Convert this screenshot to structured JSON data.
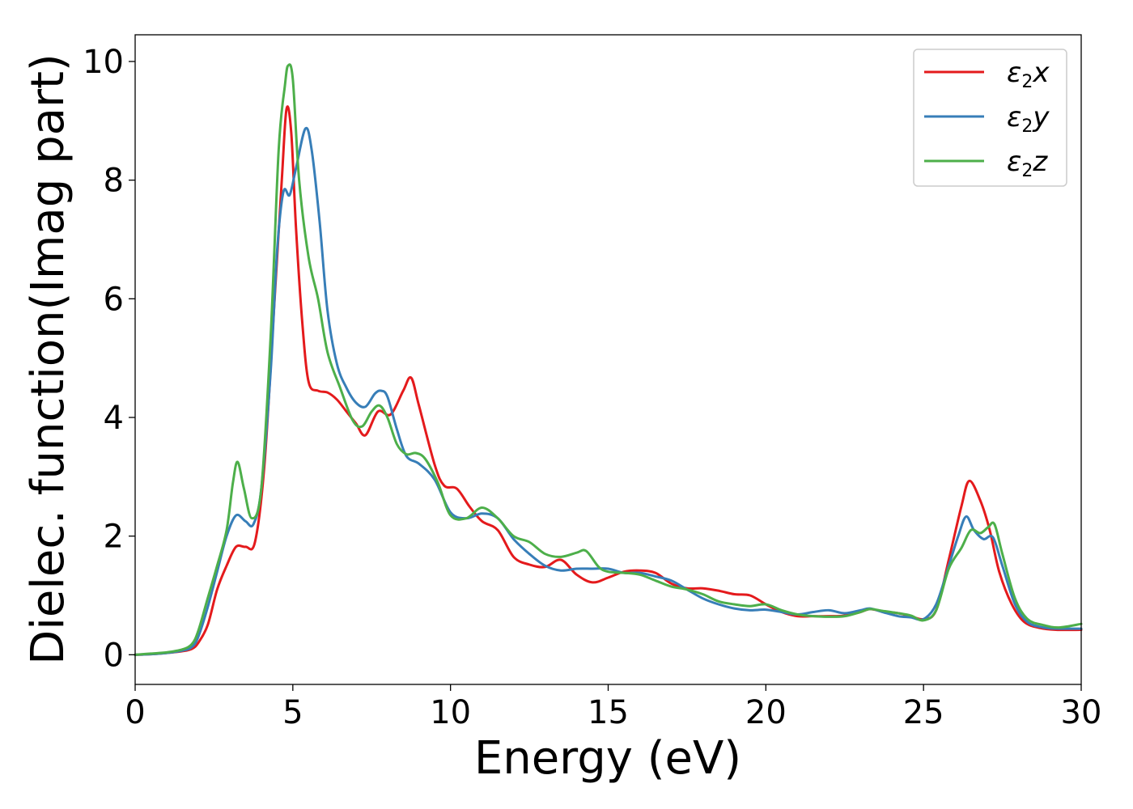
{
  "chart_data": {
    "type": "line",
    "xlabel": "Energy (eV)",
    "ylabel": "Dielec. function(Imag part)",
    "xlim": [
      0,
      30
    ],
    "ylim": [
      -0.5,
      10.45
    ],
    "xticks": [
      0,
      5,
      10,
      15,
      20,
      25,
      30
    ],
    "xtick_labels": [
      "0",
      "5",
      "10",
      "15",
      "20",
      "25",
      "30"
    ],
    "yticks": [
      0,
      2,
      4,
      6,
      8,
      10
    ],
    "ytick_labels": [
      "0",
      "2",
      "4",
      "6",
      "8",
      "10"
    ],
    "grid": false,
    "legend_position": "top-right",
    "series": [
      {
        "name": "ε2x",
        "legend_base": "ε",
        "legend_sub": "2",
        "legend_var": "x",
        "color": "#e41a1c",
        "points": [
          [
            0,
            0
          ],
          [
            0.5,
            0.01
          ],
          [
            1,
            0.03
          ],
          [
            1.5,
            0.06
          ],
          [
            1.8,
            0.1
          ],
          [
            2,
            0.2
          ],
          [
            2.3,
            0.5
          ],
          [
            2.6,
            1.1
          ],
          [
            2.9,
            1.5
          ],
          [
            3.2,
            1.82
          ],
          [
            3.5,
            1.82
          ],
          [
            3.8,
            1.9
          ],
          [
            4.1,
            3.2
          ],
          [
            4.4,
            5.8
          ],
          [
            4.65,
            8
          ],
          [
            4.8,
            9.2
          ],
          [
            4.95,
            8.8
          ],
          [
            5.1,
            7.2
          ],
          [
            5.3,
            5.6
          ],
          [
            5.5,
            4.6
          ],
          [
            5.8,
            4.45
          ],
          [
            6.1,
            4.42
          ],
          [
            6.4,
            4.3
          ],
          [
            6.7,
            4.1
          ],
          [
            7,
            3.9
          ],
          [
            7.3,
            3.7
          ],
          [
            7.7,
            4.1
          ],
          [
            8.1,
            4.05
          ],
          [
            8.5,
            4.45
          ],
          [
            8.75,
            4.67
          ],
          [
            9,
            4.2
          ],
          [
            9.5,
            3.2
          ],
          [
            9.8,
            2.85
          ],
          [
            10.2,
            2.8
          ],
          [
            10.6,
            2.5
          ],
          [
            11,
            2.25
          ],
          [
            11.5,
            2.1
          ],
          [
            12,
            1.65
          ],
          [
            12.5,
            1.52
          ],
          [
            13,
            1.48
          ],
          [
            13.5,
            1.6
          ],
          [
            14,
            1.35
          ],
          [
            14.5,
            1.22
          ],
          [
            15,
            1.3
          ],
          [
            15.5,
            1.4
          ],
          [
            16,
            1.42
          ],
          [
            16.5,
            1.38
          ],
          [
            17,
            1.2
          ],
          [
            17.5,
            1.12
          ],
          [
            18,
            1.12
          ],
          [
            18.5,
            1.08
          ],
          [
            19,
            1.02
          ],
          [
            19.5,
            1.0
          ],
          [
            20,
            0.85
          ],
          [
            20.5,
            0.72
          ],
          [
            21,
            0.65
          ],
          [
            21.5,
            0.65
          ],
          [
            22,
            0.65
          ],
          [
            22.5,
            0.66
          ],
          [
            23,
            0.72
          ],
          [
            23.3,
            0.77
          ],
          [
            23.7,
            0.73
          ],
          [
            24.2,
            0.7
          ],
          [
            24.6,
            0.65
          ],
          [
            25,
            0.6
          ],
          [
            25.4,
            0.75
          ],
          [
            25.8,
            1.6
          ],
          [
            26.2,
            2.5
          ],
          [
            26.45,
            2.93
          ],
          [
            26.8,
            2.6
          ],
          [
            27.1,
            2.1
          ],
          [
            27.4,
            1.4
          ],
          [
            27.8,
            0.85
          ],
          [
            28.2,
            0.55
          ],
          [
            28.7,
            0.45
          ],
          [
            29.2,
            0.42
          ],
          [
            30,
            0.42
          ]
        ]
      },
      {
        "name": "ε2y",
        "legend_base": "ε",
        "legend_sub": "2",
        "legend_var": "y",
        "color": "#377eb8",
        "points": [
          [
            0,
            0
          ],
          [
            0.5,
            0.01
          ],
          [
            1,
            0.03
          ],
          [
            1.5,
            0.07
          ],
          [
            1.8,
            0.13
          ],
          [
            2,
            0.3
          ],
          [
            2.3,
            0.8
          ],
          [
            2.6,
            1.4
          ],
          [
            2.9,
            2.0
          ],
          [
            3.2,
            2.35
          ],
          [
            3.5,
            2.25
          ],
          [
            3.75,
            2.2
          ],
          [
            4.0,
            2.8
          ],
          [
            4.3,
            4.8
          ],
          [
            4.5,
            6.8
          ],
          [
            4.7,
            7.8
          ],
          [
            4.9,
            7.75
          ],
          [
            5.1,
            8.2
          ],
          [
            5.4,
            8.87
          ],
          [
            5.6,
            8.5
          ],
          [
            5.85,
            7.3
          ],
          [
            6.1,
            5.8
          ],
          [
            6.4,
            4.9
          ],
          [
            6.7,
            4.5
          ],
          [
            7.0,
            4.25
          ],
          [
            7.3,
            4.18
          ],
          [
            7.6,
            4.4
          ],
          [
            7.8,
            4.45
          ],
          [
            8.0,
            4.35
          ],
          [
            8.3,
            3.8
          ],
          [
            8.6,
            3.35
          ],
          [
            9.0,
            3.22
          ],
          [
            9.5,
            2.95
          ],
          [
            10.0,
            2.4
          ],
          [
            10.5,
            2.3
          ],
          [
            11.0,
            2.38
          ],
          [
            11.5,
            2.3
          ],
          [
            12.0,
            1.95
          ],
          [
            12.5,
            1.7
          ],
          [
            13.0,
            1.5
          ],
          [
            13.5,
            1.42
          ],
          [
            14.0,
            1.45
          ],
          [
            14.5,
            1.45
          ],
          [
            15.0,
            1.45
          ],
          [
            15.5,
            1.38
          ],
          [
            16.0,
            1.38
          ],
          [
            16.5,
            1.32
          ],
          [
            17.0,
            1.25
          ],
          [
            17.5,
            1.1
          ],
          [
            18.0,
            0.95
          ],
          [
            18.5,
            0.85
          ],
          [
            19.0,
            0.78
          ],
          [
            19.5,
            0.75
          ],
          [
            20.0,
            0.76
          ],
          [
            20.5,
            0.72
          ],
          [
            21.0,
            0.68
          ],
          [
            21.5,
            0.72
          ],
          [
            22.0,
            0.75
          ],
          [
            22.5,
            0.7
          ],
          [
            23.0,
            0.75
          ],
          [
            23.3,
            0.78
          ],
          [
            23.7,
            0.72
          ],
          [
            24.2,
            0.65
          ],
          [
            24.6,
            0.63
          ],
          [
            25.0,
            0.6
          ],
          [
            25.4,
            0.85
          ],
          [
            25.8,
            1.5
          ],
          [
            26.1,
            2.0
          ],
          [
            26.35,
            2.33
          ],
          [
            26.6,
            2.1
          ],
          [
            26.9,
            1.95
          ],
          [
            27.2,
            1.98
          ],
          [
            27.5,
            1.5
          ],
          [
            27.9,
            0.85
          ],
          [
            28.3,
            0.55
          ],
          [
            28.8,
            0.46
          ],
          [
            29.3,
            0.44
          ],
          [
            30,
            0.44
          ]
        ]
      },
      {
        "name": "ε2z",
        "legend_base": "ε",
        "legend_sub": "2",
        "legend_var": "z",
        "color": "#4daf4a",
        "points": [
          [
            0,
            0
          ],
          [
            0.5,
            0.02
          ],
          [
            1,
            0.04
          ],
          [
            1.5,
            0.09
          ],
          [
            1.8,
            0.18
          ],
          [
            2,
            0.4
          ],
          [
            2.3,
            0.95
          ],
          [
            2.6,
            1.5
          ],
          [
            2.9,
            2.1
          ],
          [
            3.1,
            2.9
          ],
          [
            3.25,
            3.25
          ],
          [
            3.45,
            2.8
          ],
          [
            3.7,
            2.3
          ],
          [
            4.0,
            2.8
          ],
          [
            4.3,
            5.4
          ],
          [
            4.55,
            8.5
          ],
          [
            4.75,
            9.6
          ],
          [
            4.85,
            9.93
          ],
          [
            5.0,
            9.7
          ],
          [
            5.2,
            8.0
          ],
          [
            5.5,
            6.7
          ],
          [
            5.8,
            6.0
          ],
          [
            6.1,
            5.1
          ],
          [
            6.5,
            4.5
          ],
          [
            6.9,
            3.95
          ],
          [
            7.2,
            3.85
          ],
          [
            7.5,
            4.1
          ],
          [
            7.75,
            4.2
          ],
          [
            8.0,
            4.0
          ],
          [
            8.3,
            3.55
          ],
          [
            8.6,
            3.38
          ],
          [
            8.9,
            3.4
          ],
          [
            9.2,
            3.3
          ],
          [
            9.6,
            2.9
          ],
          [
            10.0,
            2.35
          ],
          [
            10.5,
            2.3
          ],
          [
            11.0,
            2.48
          ],
          [
            11.5,
            2.3
          ],
          [
            12.0,
            2.0
          ],
          [
            12.5,
            1.9
          ],
          [
            13.0,
            1.7
          ],
          [
            13.5,
            1.65
          ],
          [
            14.0,
            1.72
          ],
          [
            14.3,
            1.75
          ],
          [
            14.7,
            1.48
          ],
          [
            15.0,
            1.4
          ],
          [
            15.5,
            1.38
          ],
          [
            16.0,
            1.35
          ],
          [
            16.5,
            1.25
          ],
          [
            17.0,
            1.15
          ],
          [
            17.5,
            1.1
          ],
          [
            18.0,
            1.02
          ],
          [
            18.5,
            0.9
          ],
          [
            19.0,
            0.85
          ],
          [
            19.5,
            0.82
          ],
          [
            20.0,
            0.85
          ],
          [
            20.5,
            0.75
          ],
          [
            21.0,
            0.68
          ],
          [
            21.5,
            0.65
          ],
          [
            22.0,
            0.64
          ],
          [
            22.5,
            0.65
          ],
          [
            23.0,
            0.72
          ],
          [
            23.3,
            0.77
          ],
          [
            23.7,
            0.74
          ],
          [
            24.2,
            0.7
          ],
          [
            24.6,
            0.66
          ],
          [
            25.0,
            0.58
          ],
          [
            25.4,
            0.75
          ],
          [
            25.8,
            1.45
          ],
          [
            26.2,
            1.8
          ],
          [
            26.5,
            2.1
          ],
          [
            26.8,
            2.05
          ],
          [
            27.05,
            2.15
          ],
          [
            27.25,
            2.2
          ],
          [
            27.5,
            1.7
          ],
          [
            27.9,
            0.95
          ],
          [
            28.3,
            0.6
          ],
          [
            28.8,
            0.5
          ],
          [
            29.3,
            0.46
          ],
          [
            30,
            0.52
          ]
        ]
      }
    ]
  }
}
